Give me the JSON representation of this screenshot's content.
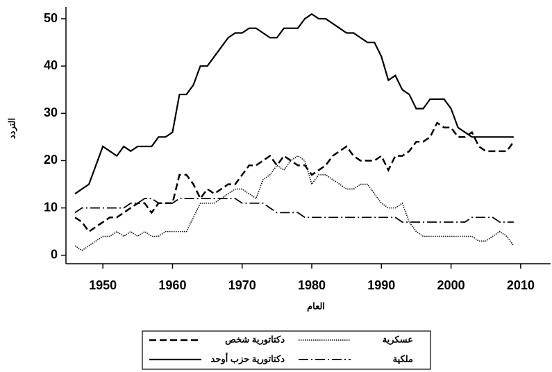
{
  "chart_data": {
    "type": "line",
    "x": [
      1946,
      1947,
      1948,
      1949,
      1950,
      1951,
      1952,
      1953,
      1954,
      1955,
      1956,
      1957,
      1958,
      1959,
      1960,
      1961,
      1962,
      1963,
      1964,
      1965,
      1966,
      1967,
      1968,
      1969,
      1970,
      1971,
      1972,
      1973,
      1974,
      1975,
      1976,
      1977,
      1978,
      1979,
      1980,
      1981,
      1982,
      1983,
      1984,
      1985,
      1986,
      1987,
      1988,
      1989,
      1990,
      1991,
      1992,
      1993,
      1994,
      1995,
      1996,
      1997,
      1998,
      1999,
      2000,
      2001,
      2002,
      2003,
      2004,
      2005,
      2006,
      2007,
      2008,
      2009
    ],
    "series": [
      {
        "name": "دكتاتورية شخص",
        "color": "#000000",
        "linestyle": "dashed",
        "values": [
          8,
          7,
          5,
          6,
          7,
          8,
          8,
          9,
          10,
          11,
          11,
          9,
          11,
          11,
          11,
          17,
          17,
          15,
          12,
          14,
          13,
          14,
          15,
          15,
          17,
          19,
          19,
          20,
          21,
          19,
          21,
          20,
          19,
          19,
          17,
          18,
          19,
          21,
          22,
          23,
          21,
          20,
          20,
          20,
          21,
          18,
          21,
          21,
          22,
          24,
          24,
          25,
          28,
          27,
          27,
          25,
          25,
          26,
          23,
          22,
          22,
          22,
          22,
          24
        ]
      },
      {
        "name": "عسكرية",
        "color": "#000000",
        "linestyle": "dotted",
        "values": [
          2,
          1,
          2,
          3,
          4,
          4,
          5,
          4,
          5,
          4,
          5,
          4,
          4,
          5,
          5,
          5,
          5,
          8,
          11,
          11,
          11,
          12,
          13,
          14,
          14,
          13,
          12,
          16,
          17,
          19,
          18,
          20,
          21,
          20,
          15,
          17,
          17,
          16,
          15,
          14,
          14,
          15,
          15,
          13,
          11,
          10,
          10,
          11,
          7,
          5,
          4,
          4,
          4,
          4,
          4,
          4,
          4,
          4,
          3,
          3,
          4,
          5,
          4,
          2
        ]
      },
      {
        "name": "دكتاتورية حزب أوحد",
        "color": "#000000",
        "linestyle": "solid",
        "values": [
          13,
          14,
          15,
          19,
          23,
          22,
          21,
          23,
          22,
          23,
          23,
          23,
          25,
          25,
          26,
          34,
          34,
          36,
          40,
          40,
          42,
          44,
          46,
          47,
          47,
          48,
          48,
          47,
          46,
          46,
          48,
          48,
          48,
          50,
          51,
          50,
          50,
          49,
          48,
          47,
          47,
          46,
          45,
          45,
          42,
          37,
          38,
          35,
          34,
          31,
          31,
          33,
          33,
          33,
          31,
          27,
          26,
          25,
          25,
          25,
          25,
          25,
          25,
          25
        ]
      },
      {
        "name": "ملكية",
        "color": "#000000",
        "linestyle": "dashdot",
        "values": [
          9,
          10,
          10,
          10,
          10,
          10,
          10,
          10,
          11,
          11,
          12,
          12,
          11,
          11,
          11,
          12,
          12,
          12,
          12,
          12,
          12,
          12,
          12,
          12,
          11,
          11,
          11,
          11,
          10,
          9,
          9,
          9,
          9,
          8,
          8,
          8,
          8,
          8,
          8,
          8,
          8,
          8,
          8,
          8,
          8,
          8,
          8,
          7,
          7,
          7,
          7,
          7,
          7,
          7,
          7,
          7,
          7,
          8,
          8,
          8,
          8,
          7,
          7,
          7
        ]
      }
    ],
    "xlabel": "العام",
    "ylabel": "التردد",
    "xlim": [
      1944.7,
      2014.5
    ],
    "xticks": [
      1950,
      1960,
      1970,
      1980,
      1990,
      2000,
      2010
    ],
    "ylim": [
      -1.8,
      52.5
    ],
    "yticks": [
      0,
      10,
      20,
      30,
      40,
      50
    ],
    "legend": "bottom"
  }
}
